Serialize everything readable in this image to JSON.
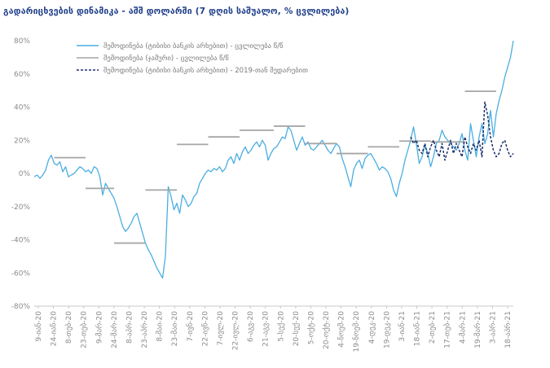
{
  "colors": {
    "title": "#1f3f8a",
    "series_daily": "#4aaee0",
    "series_monthly": "#a6a6a6",
    "series_2019": "#1b2f6b",
    "axis": "#c8c8c8",
    "tick_text": "#8c8c8c"
  },
  "chart_data": {
    "type": "line",
    "title": "გადარიცხვების დინამიკა - აშშ დოლარში (7 დღის საშუალო, % ცვლილება)",
    "xlabel": "",
    "ylabel": "",
    "ylim": [
      -80,
      80
    ],
    "y_ticks": [
      -80,
      -60,
      -40,
      -20,
      0,
      20,
      40,
      60,
      80
    ],
    "y_tick_labels": [
      "-80%",
      "-60%",
      "-40%",
      "-20%",
      "0%",
      "20%",
      "40%",
      "60%",
      "80%"
    ],
    "x_tick_labels": [
      "9-იან-20",
      "24-იან-20",
      "8-თებ-20",
      "23-თებ-20",
      "9-მარ-20",
      "24-მარ-20",
      "8-აპრ-20",
      "23-აპრ-20",
      "8-მაი-20",
      "23-მაი-20",
      "7-ივნ-20",
      "22-ივნ-20",
      "7-ივლ-20",
      "22-ივლ-20",
      "6-აგვ-20",
      "21-აგვ-20",
      "5-სექ-20",
      "20-სექ-20",
      "5-ოქტ-20",
      "20-ოქტ-20",
      "4-ნოემ-20",
      "19-ნოემ-20",
      "4-დეკ-20",
      "19-დეკ-20",
      "3-იან-21",
      "18-იან-21",
      "2-თებ-21",
      "17-თებ-21",
      "4-მარ-21",
      "19-მარ-21",
      "3-აპრ-21",
      "18-აპრ-21"
    ],
    "legend": {
      "placement": "top-left"
    },
    "series": [
      {
        "name": "შემოდინება (ტიბისი ბანკის არხებით) - ცვლილება წ/წ",
        "style": "solid",
        "points": [
          [
            0,
            -2
          ],
          [
            1,
            -1
          ],
          [
            2,
            -3
          ],
          [
            3,
            -1
          ],
          [
            4,
            2
          ],
          [
            5,
            8
          ],
          [
            6,
            11
          ],
          [
            7,
            6
          ],
          [
            8,
            5
          ],
          [
            9,
            7
          ],
          [
            10,
            1
          ],
          [
            11,
            4
          ],
          [
            12,
            -2
          ],
          [
            13,
            -1
          ],
          [
            14,
            0
          ],
          [
            15,
            2
          ],
          [
            16,
            4
          ],
          [
            17,
            3
          ],
          [
            18,
            1
          ],
          [
            19,
            2
          ],
          [
            20,
            0
          ],
          [
            21,
            4
          ],
          [
            22,
            3
          ],
          [
            23,
            -2
          ],
          [
            24,
            -13
          ],
          [
            25,
            -6
          ],
          [
            26,
            -9
          ],
          [
            27,
            -12
          ],
          [
            28,
            -15
          ],
          [
            29,
            -20
          ],
          [
            30,
            -26
          ],
          [
            31,
            -32
          ],
          [
            32,
            -35
          ],
          [
            33,
            -33
          ],
          [
            34,
            -30
          ],
          [
            35,
            -26
          ],
          [
            36,
            -24
          ],
          [
            37,
            -30
          ],
          [
            38,
            -36
          ],
          [
            39,
            -42
          ],
          [
            40,
            -46
          ],
          [
            41,
            -49
          ],
          [
            42,
            -53
          ],
          [
            43,
            -57
          ],
          [
            44,
            -60
          ],
          [
            45,
            -63
          ],
          [
            46,
            -50
          ],
          [
            47,
            -8
          ],
          [
            48,
            -14
          ],
          [
            49,
            -22
          ],
          [
            50,
            -18
          ],
          [
            51,
            -24
          ],
          [
            52,
            -13
          ],
          [
            53,
            -16
          ],
          [
            54,
            -20
          ],
          [
            55,
            -18
          ],
          [
            56,
            -14
          ],
          [
            57,
            -12
          ],
          [
            58,
            -6
          ],
          [
            59,
            -3
          ],
          [
            60,
            0
          ],
          [
            61,
            2
          ],
          [
            62,
            1
          ],
          [
            63,
            3
          ],
          [
            64,
            2
          ],
          [
            65,
            4
          ],
          [
            66,
            1
          ],
          [
            67,
            3
          ],
          [
            68,
            8
          ],
          [
            69,
            10
          ],
          [
            70,
            6
          ],
          [
            71,
            12
          ],
          [
            72,
            8
          ],
          [
            73,
            13
          ],
          [
            74,
            16
          ],
          [
            75,
            12
          ],
          [
            76,
            14
          ],
          [
            77,
            17
          ],
          [
            78,
            19
          ],
          [
            79,
            16
          ],
          [
            80,
            20
          ],
          [
            81,
            17
          ],
          [
            82,
            8
          ],
          [
            83,
            12
          ],
          [
            84,
            15
          ],
          [
            85,
            16
          ],
          [
            86,
            19
          ],
          [
            87,
            22
          ],
          [
            88,
            21
          ],
          [
            89,
            28
          ],
          [
            90,
            26
          ],
          [
            91,
            20
          ],
          [
            92,
            14
          ],
          [
            93,
            18
          ],
          [
            94,
            22
          ],
          [
            95,
            17
          ],
          [
            96,
            19
          ],
          [
            97,
            15
          ],
          [
            98,
            14
          ],
          [
            99,
            16
          ],
          [
            100,
            18
          ],
          [
            101,
            20
          ],
          [
            102,
            17
          ],
          [
            103,
            14
          ],
          [
            104,
            12
          ],
          [
            105,
            15
          ],
          [
            106,
            18
          ],
          [
            107,
            16
          ],
          [
            108,
            9
          ],
          [
            109,
            4
          ],
          [
            110,
            -2
          ],
          [
            111,
            -8
          ],
          [
            112,
            2
          ],
          [
            113,
            6
          ],
          [
            114,
            8
          ],
          [
            115,
            3
          ],
          [
            116,
            9
          ],
          [
            117,
            11
          ],
          [
            118,
            12
          ],
          [
            119,
            9
          ],
          [
            120,
            6
          ],
          [
            121,
            2
          ],
          [
            122,
            4
          ],
          [
            123,
            3
          ],
          [
            124,
            1
          ],
          [
            125,
            -3
          ],
          [
            126,
            -10
          ],
          [
            127,
            -14
          ],
          [
            128,
            -6
          ],
          [
            129,
            0
          ],
          [
            130,
            8
          ],
          [
            131,
            14
          ],
          [
            132,
            20
          ],
          [
            133,
            28
          ],
          [
            134,
            18
          ],
          [
            135,
            6
          ],
          [
            136,
            10
          ],
          [
            137,
            17
          ],
          [
            138,
            12
          ],
          [
            139,
            4
          ],
          [
            140,
            10
          ],
          [
            141,
            18
          ],
          [
            142,
            20
          ],
          [
            143,
            26
          ],
          [
            144,
            22
          ],
          [
            145,
            20
          ],
          [
            146,
            18
          ],
          [
            147,
            16
          ],
          [
            148,
            14
          ],
          [
            149,
            18
          ],
          [
            150,
            24
          ],
          [
            151,
            14
          ],
          [
            152,
            8
          ],
          [
            153,
            30
          ],
          [
            154,
            20
          ],
          [
            155,
            10
          ],
          [
            156,
            22
          ],
          [
            157,
            30
          ],
          [
            158,
            18
          ],
          [
            159,
            24
          ],
          [
            160,
            38
          ],
          [
            161,
            22
          ],
          [
            162,
            36
          ],
          [
            163,
            44
          ],
          [
            164,
            50
          ],
          [
            165,
            58
          ],
          [
            166,
            64
          ],
          [
            167,
            70
          ],
          [
            168,
            80
          ]
        ]
      },
      {
        "name": "შემოდინება (ჯამური) - ცვლილება წ/წ",
        "style": "segments",
        "segments": [
          [
            [
              7,
              9.5
            ],
            [
              18,
              9.5
            ]
          ],
          [
            [
              18,
              -9
            ],
            [
              28,
              -9
            ]
          ],
          [
            [
              28,
              -42
            ],
            [
              39,
              -42
            ]
          ],
          [
            [
              39,
              -10
            ],
            [
              50,
              -10
            ]
          ],
          [
            [
              50,
              17.5
            ],
            [
              61,
              17.5
            ]
          ],
          [
            [
              61,
              22
            ],
            [
              72,
              22
            ]
          ],
          [
            [
              72,
              26
            ],
            [
              84,
              26
            ]
          ],
          [
            [
              84,
              28.5
            ],
            [
              95,
              28.5
            ]
          ],
          [
            [
              95,
              18
            ],
            [
              106,
              18
            ]
          ],
          [
            [
              106,
              12
            ],
            [
              117,
              12
            ]
          ],
          [
            [
              117,
              16
            ],
            [
              128,
              16
            ]
          ],
          [
            [
              128,
              19.5
            ],
            [
              139,
              19.5
            ]
          ],
          [
            [
              139,
              19
            ],
            [
              151,
              19
            ]
          ],
          [
            [
              151,
              49.5
            ],
            [
              162,
              49.5
            ]
          ]
        ]
      },
      {
        "name": "შემოდინება (ტიბისი ბანკის არხებით) - 2019-თან შედარებით",
        "style": "dashed",
        "points": [
          [
            132,
            22
          ],
          [
            133,
            18
          ],
          [
            134,
            20
          ],
          [
            135,
            14
          ],
          [
            136,
            12
          ],
          [
            137,
            18
          ],
          [
            138,
            10
          ],
          [
            139,
            16
          ],
          [
            140,
            20
          ],
          [
            141,
            14
          ],
          [
            142,
            10
          ],
          [
            143,
            18
          ],
          [
            144,
            8
          ],
          [
            145,
            14
          ],
          [
            146,
            20
          ],
          [
            147,
            12
          ],
          [
            148,
            18
          ],
          [
            149,
            14
          ],
          [
            150,
            10
          ],
          [
            151,
            22
          ],
          [
            152,
            16
          ],
          [
            153,
            12
          ],
          [
            154,
            18
          ],
          [
            155,
            14
          ],
          [
            156,
            20
          ],
          [
            157,
            10
          ],
          [
            158,
            43
          ],
          [
            159,
            35
          ],
          [
            160,
            22
          ],
          [
            161,
            14
          ],
          [
            162,
            10
          ],
          [
            163,
            12
          ],
          [
            164,
            18
          ],
          [
            165,
            20
          ],
          [
            166,
            14
          ],
          [
            167,
            10
          ],
          [
            168,
            12
          ]
        ]
      }
    ]
  }
}
